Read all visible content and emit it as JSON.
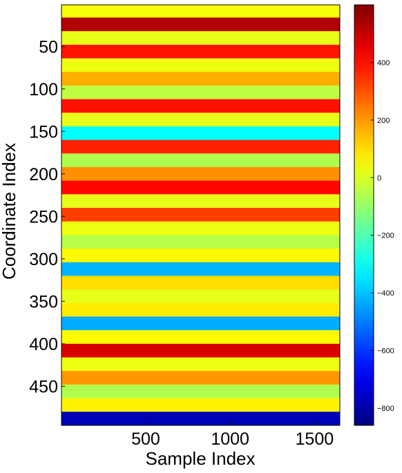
{
  "chart_data": {
    "type": "heatmap",
    "title": "",
    "xlabel": "Sample Index",
    "ylabel": "Coordinate Index",
    "xlim": [
      1,
      1650
    ],
    "ylim": [
      1,
      496
    ],
    "x_ticks": [
      500,
      1000,
      1500
    ],
    "y_ticks": [
      50,
      100,
      150,
      200,
      250,
      300,
      350,
      400,
      450
    ],
    "y_direction": "reversed",
    "colormap": "jet",
    "colorbar": {
      "range": [
        -860,
        600
      ],
      "ticks": [
        400,
        200,
        0,
        -200,
        -400,
        -600,
        -800
      ],
      "tick_labels": [
        "400",
        "200",
        "0",
        "−200",
        "−400",
        "−600",
        "−800"
      ]
    },
    "rows": [
      {
        "y_start": 1,
        "y_end": 16,
        "value": 40
      },
      {
        "y_start": 16,
        "y_end": 32,
        "value": 530
      },
      {
        "y_start": 32,
        "y_end": 48,
        "value": 20
      },
      {
        "y_start": 48,
        "y_end": 64,
        "value": 390
      },
      {
        "y_start": 64,
        "y_end": 80,
        "value": 30
      },
      {
        "y_start": 80,
        "y_end": 96,
        "value": 170
      },
      {
        "y_start": 96,
        "y_end": 112,
        "value": -40
      },
      {
        "y_start": 112,
        "y_end": 128,
        "value": 390
      },
      {
        "y_start": 128,
        "y_end": 144,
        "value": 20
      },
      {
        "y_start": 144,
        "y_end": 160,
        "value": -310
      },
      {
        "y_start": 160,
        "y_end": 176,
        "value": 370
      },
      {
        "y_start": 176,
        "y_end": 192,
        "value": -60
      },
      {
        "y_start": 192,
        "y_end": 208,
        "value": 210
      },
      {
        "y_start": 208,
        "y_end": 224,
        "value": 410
      },
      {
        "y_start": 224,
        "y_end": 240,
        "value": 20
      },
      {
        "y_start": 240,
        "y_end": 256,
        "value": 330
      },
      {
        "y_start": 256,
        "y_end": 272,
        "value": 30
      },
      {
        "y_start": 272,
        "y_end": 288,
        "value": -50
      },
      {
        "y_start": 288,
        "y_end": 304,
        "value": 60
      },
      {
        "y_start": 304,
        "y_end": 320,
        "value": -420
      },
      {
        "y_start": 320,
        "y_end": 336,
        "value": 100
      },
      {
        "y_start": 336,
        "y_end": 352,
        "value": 20
      },
      {
        "y_start": 352,
        "y_end": 368,
        "value": 80
      },
      {
        "y_start": 368,
        "y_end": 384,
        "value": -430
      },
      {
        "y_start": 384,
        "y_end": 400,
        "value": 60
      },
      {
        "y_start": 400,
        "y_end": 416,
        "value": 470
      },
      {
        "y_start": 416,
        "y_end": 432,
        "value": 30
      },
      {
        "y_start": 432,
        "y_end": 448,
        "value": 200
      },
      {
        "y_start": 448,
        "y_end": 464,
        "value": -60
      },
      {
        "y_start": 464,
        "y_end": 480,
        "value": 70
      },
      {
        "y_start": 480,
        "y_end": 496,
        "value": -780
      }
    ]
  },
  "colors": {
    "axis": "#000000",
    "background": "#ffffff"
  }
}
